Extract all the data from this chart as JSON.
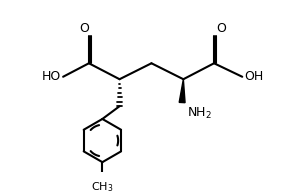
{
  "bg_color": "#ffffff",
  "line_color": "#000000",
  "line_width": 1.5,
  "font_size": 9,
  "fig_width": 2.98,
  "fig_height": 1.94,
  "dpi": 100,
  "xlim": [
    0,
    10
  ],
  "ylim": [
    0,
    7
  ]
}
